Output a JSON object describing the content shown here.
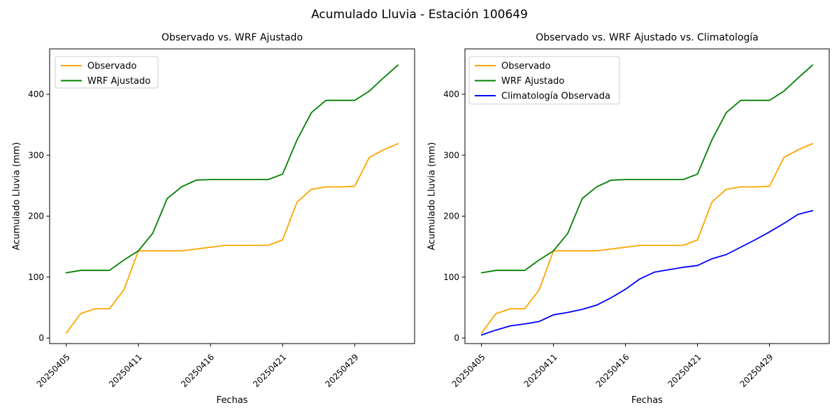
{
  "figure": {
    "title": "Acumulado Lluvia - Estación 100649",
    "background": "#ffffff",
    "text_color": "#000000",
    "legend_border_color": "#cccccc"
  },
  "chart_data": [
    {
      "type": "line",
      "title": "Observado vs. WRF Ajustado",
      "xlabel": "Fechas",
      "ylabel": "Acumulado Lluvia (mm)",
      "grid": false,
      "legend_position": "upper left",
      "legend_entries": [
        "Observado",
        "WRF Ajustado"
      ],
      "y_ticks": [
        0,
        100,
        200,
        300,
        400
      ],
      "ylim": [
        -9,
        474
      ],
      "n_points": 24,
      "x_tick_indices": [
        0,
        5,
        10,
        15,
        20
      ],
      "x_tick_labels": [
        "20250405",
        "20250411",
        "20250416",
        "20250421",
        "20250429"
      ],
      "x_tick_rotation_deg": 45,
      "series": [
        {
          "name": "Observado",
          "color": "#ffa500",
          "values": [
            8,
            40,
            48,
            48,
            79,
            143,
            143,
            143,
            143,
            146,
            149,
            152,
            152,
            152,
            152,
            161,
            223,
            244,
            248,
            248,
            249,
            296,
            309,
            319
          ]
        },
        {
          "name": "WRF Ajustado",
          "color": "#008000",
          "values": [
            107,
            111,
            111,
            111,
            128,
            143,
            172,
            229,
            248,
            259,
            260,
            260,
            260,
            260,
            260,
            269,
            325,
            370,
            390,
            390,
            390,
            405,
            427,
            448
          ]
        }
      ]
    },
    {
      "type": "line",
      "title": "Observado vs. WRF Ajustado vs. Climatología",
      "xlabel": "Fechas",
      "ylabel": "Acumulado Lluvia (mm)",
      "grid": false,
      "legend_position": "upper left",
      "legend_entries": [
        "Observado",
        "WRF Ajustado",
        "Climatología Observada"
      ],
      "y_ticks": [
        0,
        100,
        200,
        300,
        400
      ],
      "ylim": [
        -9,
        474
      ],
      "n_points": 24,
      "x_tick_indices": [
        0,
        5,
        10,
        15,
        20
      ],
      "x_tick_labels": [
        "20250405",
        "20250411",
        "20250416",
        "20250421",
        "20250429"
      ],
      "x_tick_rotation_deg": 45,
      "series": [
        {
          "name": "Observado",
          "color": "#ffa500",
          "values": [
            8,
            40,
            48,
            48,
            79,
            143,
            143,
            143,
            143,
            146,
            149,
            152,
            152,
            152,
            152,
            161,
            223,
            244,
            248,
            248,
            249,
            296,
            309,
            319
          ]
        },
        {
          "name": "WRF Ajustado",
          "color": "#008000",
          "values": [
            107,
            111,
            111,
            111,
            128,
            143,
            172,
            229,
            248,
            259,
            260,
            260,
            260,
            260,
            260,
            269,
            325,
            370,
            390,
            390,
            390,
            405,
            427,
            448
          ]
        },
        {
          "name": "Climatología Observada",
          "color": "#0000ff",
          "values": [
            5,
            13,
            20,
            23,
            27,
            38,
            42,
            47,
            54,
            66,
            80,
            97,
            108,
            112,
            116,
            119,
            130,
            137,
            149,
            161,
            174,
            188,
            203,
            209
          ]
        }
      ]
    }
  ]
}
